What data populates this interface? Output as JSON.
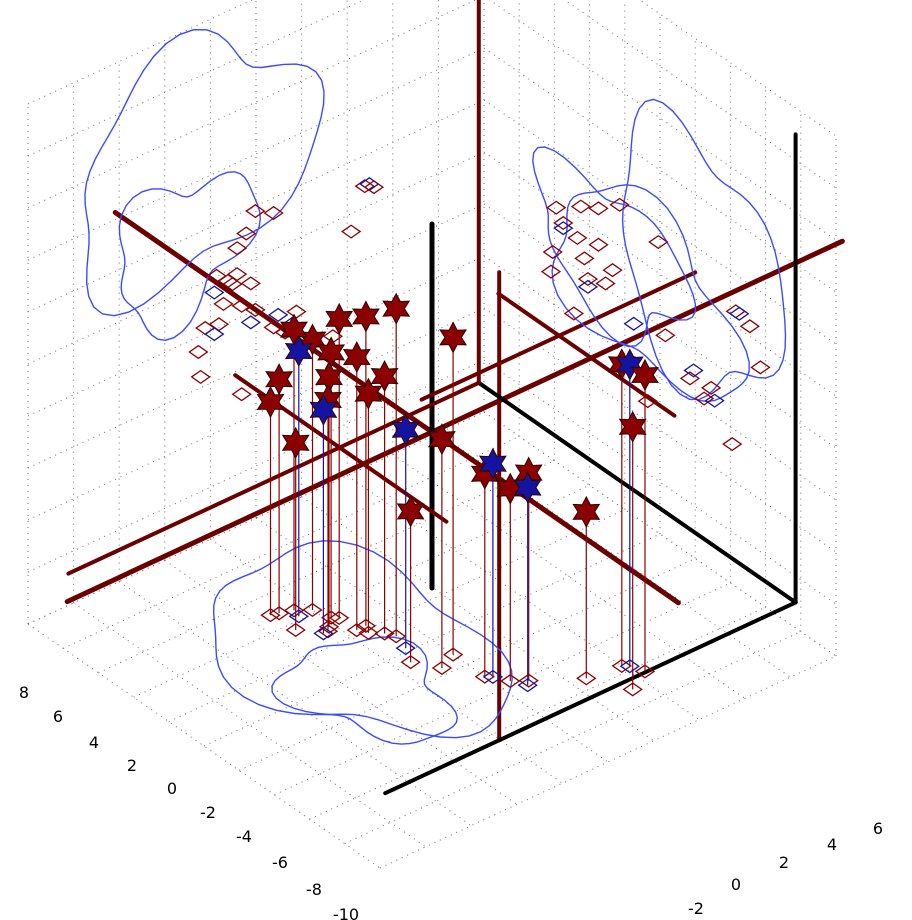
{
  "chart_data": {
    "type": "scatter",
    "dimensions": 3,
    "projection": "3d-perspective",
    "title": "",
    "xlabel": "",
    "ylabel": "",
    "zlabel": "",
    "grid": true,
    "grid_style": "dotted",
    "x_ticks": [
      "-10",
      "-8",
      "-6",
      "-4",
      "-2",
      "0",
      "2",
      "4",
      "6",
      "8"
    ],
    "y_ticks": [
      "-2",
      "0",
      "2",
      "4",
      "6"
    ],
    "colors": {
      "accent": "#8b0000",
      "accent_dark": "#6b0000",
      "accent_light": "#c04040",
      "secondary": "#1414a0",
      "secondary_light": "#3a4bff",
      "grid": "#6e6e6e",
      "walls": "#000000"
    },
    "series": [
      {
        "marker": "star",
        "color": "#8b0000",
        "points": [
          {
            "x": 1.2,
            "y": 0.0,
            "z": 4.2
          },
          {
            "x": -1.0,
            "y": -0.8,
            "z": 4.6
          },
          {
            "x": -3.2,
            "y": -1.6,
            "z": 3.5
          },
          {
            "x": -2.2,
            "y": -1.2,
            "z": 3.9
          },
          {
            "x": -4.6,
            "y": -2.5,
            "z": 2.8
          },
          {
            "x": -4.2,
            "y": -2.0,
            "z": 2.4
          },
          {
            "x": -3.4,
            "y": -1.8,
            "z": 2.2
          },
          {
            "x": -2.2,
            "y": -1.6,
            "z": 2.5
          },
          {
            "x": -3.0,
            "y": -2.2,
            "z": 1.6
          },
          {
            "x": -1.4,
            "y": -1.0,
            "z": 1.9
          },
          {
            "x": -1.8,
            "y": -1.4,
            "z": 1.2
          },
          {
            "x": -4.8,
            "y": -3.0,
            "z": 1.0
          },
          {
            "x": -4.9,
            "y": -3.3,
            "z": 0.2
          },
          {
            "x": -3.6,
            "y": -3.2,
            "z": -0.8
          },
          {
            "x": 1.6,
            "y": -0.8,
            "z": 0.8
          },
          {
            "x": 3.0,
            "y": 0.0,
            "z": -0.2
          },
          {
            "x": 4.2,
            "y": 1.0,
            "z": 0.0
          },
          {
            "x": 3.8,
            "y": 0.5,
            "z": -0.6
          },
          {
            "x": 5.4,
            "y": 2.6,
            "z": -1.6
          },
          {
            "x": 0.6,
            "y": -1.4,
            "z": -2.2
          },
          {
            "x": 5.6,
            "y": 4.0,
            "z": 3.6
          },
          {
            "x": 6.4,
            "y": 4.4,
            "z": 3.4
          },
          {
            "x": 7.0,
            "y": 3.4,
            "z": 2.1
          },
          {
            "x": -2.8,
            "y": -2.4,
            "z": 0.9
          }
        ]
      },
      {
        "marker": "star",
        "color": "#1414a0",
        "points": [
          {
            "x": -4.2,
            "y": -2.6,
            "z": 2.2
          },
          {
            "x": -2.8,
            "y": -2.6,
            "z": 0.6
          },
          {
            "x": -0.2,
            "y": -1.0,
            "z": 0.4
          },
          {
            "x": 3.2,
            "y": 0.2,
            "z": 0.2
          },
          {
            "x": 4.4,
            "y": 0.8,
            "z": -0.4
          },
          {
            "x": 5.8,
            "y": 4.2,
            "z": 3.6
          }
        ]
      }
    ]
  }
}
